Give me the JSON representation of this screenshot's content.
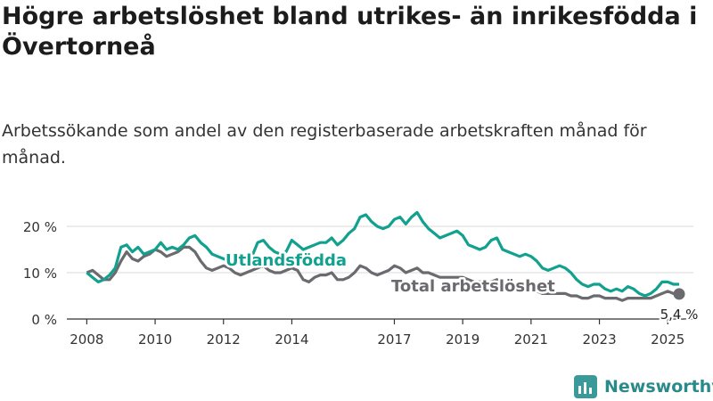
{
  "title": "Högre arbetslöshet bland utrikes- än inrikesfödda i Övertorneå",
  "subtitle": "Arbetssökande som andel av den registerbaserade arbetskraften månad för månad.",
  "logo_text": "Newsworthy",
  "colors": {
    "utlandsfodda": "#12a08f",
    "total": "#6b6b6f",
    "axis": "#333333",
    "grid": "#d9d9d9"
  },
  "chart_data": {
    "type": "line",
    "x_ticks": [
      "2008",
      "2010",
      "2012",
      "2014",
      "2017",
      "2019",
      "2021",
      "2023",
      "2025"
    ],
    "y_ticks": [
      "0 %",
      "10 %",
      "20 %"
    ],
    "ylim": [
      0,
      20
    ],
    "xlim": [
      "2007-06",
      "2025-10"
    ],
    "grid": "horizontal",
    "end_label": "5,4 %",
    "series": [
      {
        "name": "Utlandsfödda",
        "color": "#12a08f",
        "points": [
          [
            "2008-01",
            10.0
          ],
          [
            "2008-03",
            9.0
          ],
          [
            "2008-05",
            8.0
          ],
          [
            "2008-07",
            8.5
          ],
          [
            "2008-09",
            9.5
          ],
          [
            "2008-11",
            11.0
          ],
          [
            "2009-01",
            15.5
          ],
          [
            "2009-03",
            16.0
          ],
          [
            "2009-05",
            14.5
          ],
          [
            "2009-07",
            15.5
          ],
          [
            "2009-09",
            14.0
          ],
          [
            "2009-11",
            14.5
          ],
          [
            "2010-01",
            15.0
          ],
          [
            "2010-03",
            16.5
          ],
          [
            "2010-05",
            15.0
          ],
          [
            "2010-07",
            15.5
          ],
          [
            "2010-09",
            15.0
          ],
          [
            "2010-11",
            16.0
          ],
          [
            "2011-01",
            17.5
          ],
          [
            "2011-03",
            18.0
          ],
          [
            "2011-05",
            16.5
          ],
          [
            "2011-07",
            15.5
          ],
          [
            "2011-09",
            14.0
          ],
          [
            "2011-11",
            13.5
          ],
          [
            "2012-01",
            13.0
          ],
          [
            "2012-03",
            12.5
          ],
          [
            "2012-05",
            12.0
          ],
          [
            "2012-07",
            12.0
          ],
          [
            "2012-09",
            12.5
          ],
          [
            "2012-11",
            13.5
          ],
          [
            "2013-01",
            16.5
          ],
          [
            "2013-03",
            17.0
          ],
          [
            "2013-05",
            15.5
          ],
          [
            "2013-07",
            14.5
          ],
          [
            "2013-09",
            14.0
          ],
          [
            "2013-11",
            14.5
          ],
          [
            "2014-01",
            17.0
          ],
          [
            "2014-03",
            16.0
          ],
          [
            "2014-05",
            15.0
          ],
          [
            "2014-07",
            15.5
          ],
          [
            "2014-09",
            16.0
          ],
          [
            "2014-11",
            16.5
          ],
          [
            "2015-01",
            16.5
          ],
          [
            "2015-03",
            17.5
          ],
          [
            "2015-05",
            16.0
          ],
          [
            "2015-07",
            17.0
          ],
          [
            "2015-09",
            18.5
          ],
          [
            "2015-11",
            19.5
          ],
          [
            "2016-01",
            22.0
          ],
          [
            "2016-03",
            22.5
          ],
          [
            "2016-05",
            21.0
          ],
          [
            "2016-07",
            20.0
          ],
          [
            "2016-09",
            19.5
          ],
          [
            "2016-11",
            20.0
          ],
          [
            "2017-01",
            21.5
          ],
          [
            "2017-03",
            22.0
          ],
          [
            "2017-05",
            20.5
          ],
          [
            "2017-07",
            22.0
          ],
          [
            "2017-09",
            23.0
          ],
          [
            "2017-11",
            21.0
          ],
          [
            "2018-01",
            19.5
          ],
          [
            "2018-03",
            18.5
          ],
          [
            "2018-05",
            17.5
          ],
          [
            "2018-07",
            18.0
          ],
          [
            "2018-09",
            18.5
          ],
          [
            "2018-11",
            19.0
          ],
          [
            "2019-01",
            18.0
          ],
          [
            "2019-03",
            16.0
          ],
          [
            "2019-05",
            15.5
          ],
          [
            "2019-07",
            15.0
          ],
          [
            "2019-09",
            15.5
          ],
          [
            "2019-11",
            17.0
          ],
          [
            "2020-01",
            17.5
          ],
          [
            "2020-03",
            15.0
          ],
          [
            "2020-05",
            14.5
          ],
          [
            "2020-07",
            14.0
          ],
          [
            "2020-09",
            13.5
          ],
          [
            "2020-11",
            14.0
          ],
          [
            "2021-01",
            13.5
          ],
          [
            "2021-03",
            12.5
          ],
          [
            "2021-05",
            11.0
          ],
          [
            "2021-07",
            10.5
          ],
          [
            "2021-09",
            11.0
          ],
          [
            "2021-11",
            11.5
          ],
          [
            "2022-01",
            11.0
          ],
          [
            "2022-03",
            10.0
          ],
          [
            "2022-05",
            8.5
          ],
          [
            "2022-07",
            7.5
          ],
          [
            "2022-09",
            7.0
          ],
          [
            "2022-11",
            7.5
          ],
          [
            "2023-01",
            7.5
          ],
          [
            "2023-03",
            6.5
          ],
          [
            "2023-05",
            6.0
          ],
          [
            "2023-07",
            6.5
          ],
          [
            "2023-09",
            6.0
          ],
          [
            "2023-11",
            7.0
          ],
          [
            "2024-01",
            6.5
          ],
          [
            "2024-03",
            5.5
          ],
          [
            "2024-05",
            5.0
          ],
          [
            "2024-07",
            5.5
          ],
          [
            "2024-09",
            6.5
          ],
          [
            "2024-11",
            8.0
          ],
          [
            "2025-01",
            8.0
          ],
          [
            "2025-03",
            7.5
          ],
          [
            "2025-05",
            7.5
          ]
        ]
      },
      {
        "name": "Total arbetslöshet",
        "color": "#6b6b6f",
        "points": [
          [
            "2008-01",
            10.0
          ],
          [
            "2008-03",
            10.5
          ],
          [
            "2008-05",
            9.5
          ],
          [
            "2008-07",
            8.5
          ],
          [
            "2008-09",
            8.5
          ],
          [
            "2008-11",
            10.0
          ],
          [
            "2009-01",
            12.5
          ],
          [
            "2009-03",
            14.5
          ],
          [
            "2009-05",
            13.0
          ],
          [
            "2009-07",
            12.5
          ],
          [
            "2009-09",
            13.5
          ],
          [
            "2009-11",
            14.0
          ],
          [
            "2010-01",
            15.0
          ],
          [
            "2010-03",
            14.5
          ],
          [
            "2010-05",
            13.5
          ],
          [
            "2010-07",
            14.0
          ],
          [
            "2010-09",
            14.5
          ],
          [
            "2010-11",
            15.5
          ],
          [
            "2011-01",
            15.5
          ],
          [
            "2011-03",
            14.5
          ],
          [
            "2011-05",
            12.5
          ],
          [
            "2011-07",
            11.0
          ],
          [
            "2011-09",
            10.5
          ],
          [
            "2011-11",
            11.0
          ],
          [
            "2012-01",
            11.5
          ],
          [
            "2012-03",
            11.0
          ],
          [
            "2012-05",
            10.0
          ],
          [
            "2012-07",
            9.5
          ],
          [
            "2012-09",
            10.0
          ],
          [
            "2012-11",
            10.5
          ],
          [
            "2013-01",
            11.0
          ],
          [
            "2013-03",
            11.5
          ],
          [
            "2013-05",
            10.5
          ],
          [
            "2013-07",
            10.0
          ],
          [
            "2013-09",
            10.0
          ],
          [
            "2013-11",
            10.5
          ],
          [
            "2014-01",
            11.0
          ],
          [
            "2014-03",
            10.5
          ],
          [
            "2014-05",
            8.5
          ],
          [
            "2014-07",
            8.0
          ],
          [
            "2014-09",
            9.0
          ],
          [
            "2014-11",
            9.5
          ],
          [
            "2015-01",
            9.5
          ],
          [
            "2015-03",
            10.0
          ],
          [
            "2015-05",
            8.5
          ],
          [
            "2015-07",
            8.5
          ],
          [
            "2015-09",
            9.0
          ],
          [
            "2015-11",
            10.0
          ],
          [
            "2016-01",
            11.5
          ],
          [
            "2016-03",
            11.0
          ],
          [
            "2016-05",
            10.0
          ],
          [
            "2016-07",
            9.5
          ],
          [
            "2016-09",
            10.0
          ],
          [
            "2016-11",
            10.5
          ],
          [
            "2017-01",
            11.5
          ],
          [
            "2017-03",
            11.0
          ],
          [
            "2017-05",
            10.0
          ],
          [
            "2017-07",
            10.5
          ],
          [
            "2017-09",
            11.0
          ],
          [
            "2017-11",
            10.0
          ],
          [
            "2018-01",
            10.0
          ],
          [
            "2018-03",
            9.5
          ],
          [
            "2018-05",
            9.0
          ],
          [
            "2018-07",
            9.0
          ],
          [
            "2018-09",
            9.0
          ],
          [
            "2018-11",
            9.0
          ],
          [
            "2019-01",
            9.0
          ],
          [
            "2019-03",
            8.5
          ],
          [
            "2019-05",
            8.0
          ],
          [
            "2019-07",
            8.0
          ],
          [
            "2019-09",
            8.0
          ],
          [
            "2019-11",
            8.0
          ],
          [
            "2020-01",
            8.5
          ],
          [
            "2020-03",
            7.5
          ],
          [
            "2020-05",
            7.0
          ],
          [
            "2020-07",
            6.5
          ],
          [
            "2020-09",
            6.5
          ],
          [
            "2020-11",
            6.5
          ],
          [
            "2021-01",
            6.5
          ],
          [
            "2021-03",
            6.0
          ],
          [
            "2021-05",
            5.5
          ],
          [
            "2021-07",
            5.5
          ],
          [
            "2021-09",
            5.5
          ],
          [
            "2021-11",
            5.5
          ],
          [
            "2022-01",
            5.5
          ],
          [
            "2022-03",
            5.0
          ],
          [
            "2022-05",
            5.0
          ],
          [
            "2022-07",
            4.5
          ],
          [
            "2022-09",
            4.5
          ],
          [
            "2022-11",
            5.0
          ],
          [
            "2023-01",
            5.0
          ],
          [
            "2023-03",
            4.5
          ],
          [
            "2023-05",
            4.5
          ],
          [
            "2023-07",
            4.5
          ],
          [
            "2023-09",
            4.0
          ],
          [
            "2023-11",
            4.5
          ],
          [
            "2024-01",
            4.5
          ],
          [
            "2024-03",
            4.5
          ],
          [
            "2024-05",
            4.5
          ],
          [
            "2024-07",
            4.5
          ],
          [
            "2024-09",
            5.0
          ],
          [
            "2024-11",
            5.5
          ],
          [
            "2025-01",
            6.0
          ],
          [
            "2025-03",
            5.5
          ],
          [
            "2025-05",
            5.4
          ]
        ]
      }
    ]
  }
}
